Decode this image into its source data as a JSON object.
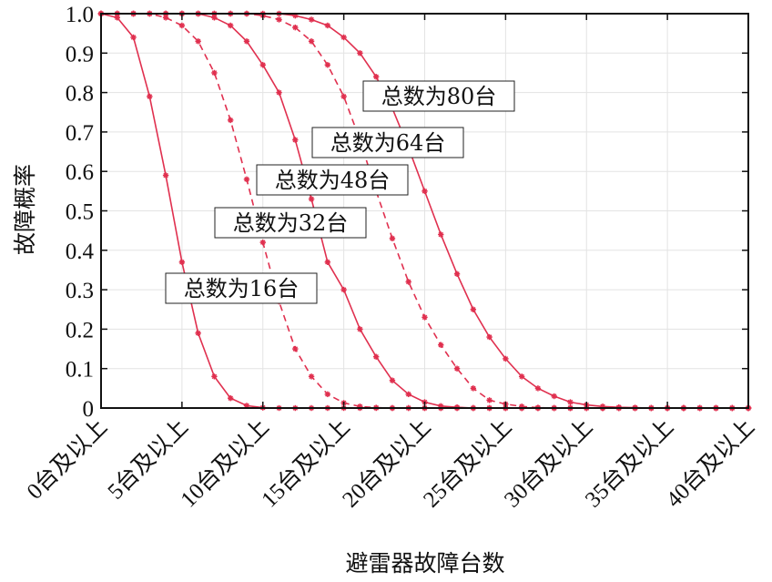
{
  "chart_data": {
    "type": "line",
    "xlabel": "避雷器故障台数",
    "ylabel": "故障概率",
    "xlim": [
      0,
      40
    ],
    "ylim": [
      0,
      1
    ],
    "grid": true,
    "line_color": "#e0304f",
    "x_ticks": [
      {
        "value": 0,
        "label": "0台及以上"
      },
      {
        "value": 5,
        "label": "5台及以上"
      },
      {
        "value": 10,
        "label": "10台及以上"
      },
      {
        "value": 15,
        "label": "15台及以上"
      },
      {
        "value": 20,
        "label": "20台及以上"
      },
      {
        "value": 25,
        "label": "25台及以上"
      },
      {
        "value": 30,
        "label": "30台及以上"
      },
      {
        "value": 35,
        "label": "35台及以上"
      },
      {
        "value": 40,
        "label": "40台及以上"
      }
    ],
    "y_ticks": [
      {
        "value": 0,
        "label": "0"
      },
      {
        "value": 0.1,
        "label": "0.1"
      },
      {
        "value": 0.2,
        "label": "0.2"
      },
      {
        "value": 0.3,
        "label": "0.3"
      },
      {
        "value": 0.4,
        "label": "0.4"
      },
      {
        "value": 0.5,
        "label": "0.5"
      },
      {
        "value": 0.6,
        "label": "0.6"
      },
      {
        "value": 0.7,
        "label": "0.7"
      },
      {
        "value": 0.8,
        "label": "0.8"
      },
      {
        "value": 0.9,
        "label": "0.9"
      },
      {
        "value": 1.0,
        "label": "1.0"
      }
    ],
    "series": [
      {
        "name": "总数为16台",
        "style": "solid",
        "x": [
          0,
          1,
          2,
          3,
          4,
          5,
          6,
          7,
          8,
          9,
          10,
          11,
          12,
          13,
          14,
          15,
          16,
          17,
          18,
          19,
          20,
          21,
          22,
          23,
          24,
          25,
          26,
          27,
          28,
          29,
          30,
          31,
          32,
          33,
          34,
          35,
          36,
          37,
          38,
          39,
          40
        ],
        "y": [
          1.0,
          0.99,
          0.94,
          0.79,
          0.59,
          0.37,
          0.19,
          0.08,
          0.025,
          0.006,
          0.001,
          0,
          0,
          0,
          0,
          0,
          0,
          0,
          0,
          0,
          0,
          0,
          0,
          0,
          0,
          0,
          0,
          0,
          0,
          0,
          0,
          0,
          0,
          0,
          0,
          0,
          0,
          0,
          0,
          0,
          0
        ]
      },
      {
        "name": "总数为32台",
        "style": "dashed",
        "x": [
          0,
          1,
          2,
          3,
          4,
          5,
          6,
          7,
          8,
          9,
          10,
          11,
          12,
          13,
          14,
          15,
          16,
          17,
          18,
          19,
          20,
          21,
          22,
          23,
          24,
          25,
          26,
          27,
          28,
          29,
          30,
          31,
          32,
          33,
          34,
          35,
          36,
          37,
          38,
          39,
          40
        ],
        "y": [
          1.0,
          1.0,
          1.0,
          1.0,
          0.99,
          0.97,
          0.93,
          0.85,
          0.73,
          0.58,
          0.42,
          0.27,
          0.15,
          0.08,
          0.035,
          0.013,
          0.004,
          0.001,
          0,
          0,
          0,
          0,
          0,
          0,
          0,
          0,
          0,
          0,
          0,
          0,
          0,
          0,
          0,
          0,
          0,
          0,
          0,
          0,
          0,
          0,
          0
        ]
      },
      {
        "name": "总数为48台",
        "style": "solid",
        "x": [
          0,
          1,
          2,
          3,
          4,
          5,
          6,
          7,
          8,
          9,
          10,
          11,
          12,
          13,
          14,
          15,
          16,
          17,
          18,
          19,
          20,
          21,
          22,
          23,
          24,
          25,
          26,
          27,
          28,
          29,
          30,
          31,
          32,
          33,
          34,
          35,
          36,
          37,
          38,
          39,
          40
        ],
        "y": [
          1.0,
          1.0,
          1.0,
          1.0,
          1.0,
          1.0,
          1.0,
          0.99,
          0.97,
          0.93,
          0.87,
          0.8,
          0.68,
          0.53,
          0.37,
          0.3,
          0.2,
          0.13,
          0.07,
          0.035,
          0.015,
          0.005,
          0.002,
          0,
          0,
          0,
          0,
          0,
          0,
          0,
          0,
          0,
          0,
          0,
          0,
          0,
          0,
          0,
          0,
          0,
          0
        ]
      },
      {
        "name": "总数为64台",
        "style": "dashed",
        "x": [
          0,
          1,
          2,
          3,
          4,
          5,
          6,
          7,
          8,
          9,
          10,
          11,
          12,
          13,
          14,
          15,
          16,
          17,
          18,
          19,
          20,
          21,
          22,
          23,
          24,
          25,
          26,
          27,
          28,
          29,
          30,
          31,
          32,
          33,
          34,
          35,
          36,
          37,
          38,
          39,
          40
        ],
        "y": [
          1.0,
          1.0,
          1.0,
          1.0,
          1.0,
          1.0,
          1.0,
          1.0,
          1.0,
          1.0,
          0.995,
          0.985,
          0.965,
          0.93,
          0.87,
          0.79,
          0.68,
          0.55,
          0.43,
          0.32,
          0.23,
          0.16,
          0.1,
          0.05,
          0.02,
          0.01,
          0.004,
          0.001,
          0,
          0,
          0,
          0,
          0,
          0,
          0,
          0,
          0,
          0,
          0,
          0,
          0
        ]
      },
      {
        "name": "总数为80台",
        "style": "solid",
        "x": [
          0,
          1,
          2,
          3,
          4,
          5,
          6,
          7,
          8,
          9,
          10,
          11,
          12,
          13,
          14,
          15,
          16,
          17,
          18,
          19,
          20,
          21,
          22,
          23,
          24,
          25,
          26,
          27,
          28,
          29,
          30,
          31,
          32,
          33,
          34,
          35,
          36,
          37,
          38,
          39,
          40
        ],
        "y": [
          1.0,
          1.0,
          1.0,
          1.0,
          1.0,
          1.0,
          1.0,
          1.0,
          1.0,
          1.0,
          1.0,
          1.0,
          0.995,
          0.985,
          0.97,
          0.94,
          0.9,
          0.84,
          0.76,
          0.66,
          0.55,
          0.44,
          0.34,
          0.25,
          0.18,
          0.125,
          0.08,
          0.05,
          0.03,
          0.015,
          0.008,
          0.004,
          0.002,
          0.001,
          0,
          0,
          0,
          0,
          0,
          0,
          0
        ]
      }
    ],
    "annotations": [
      {
        "text": "总数为80台",
        "series_index": 4
      },
      {
        "text": "总数为64台",
        "series_index": 3
      },
      {
        "text": "总数为48台",
        "series_index": 2
      },
      {
        "text": "总数为32台",
        "series_index": 1
      },
      {
        "text": "总数为16台",
        "series_index": 0
      }
    ]
  }
}
